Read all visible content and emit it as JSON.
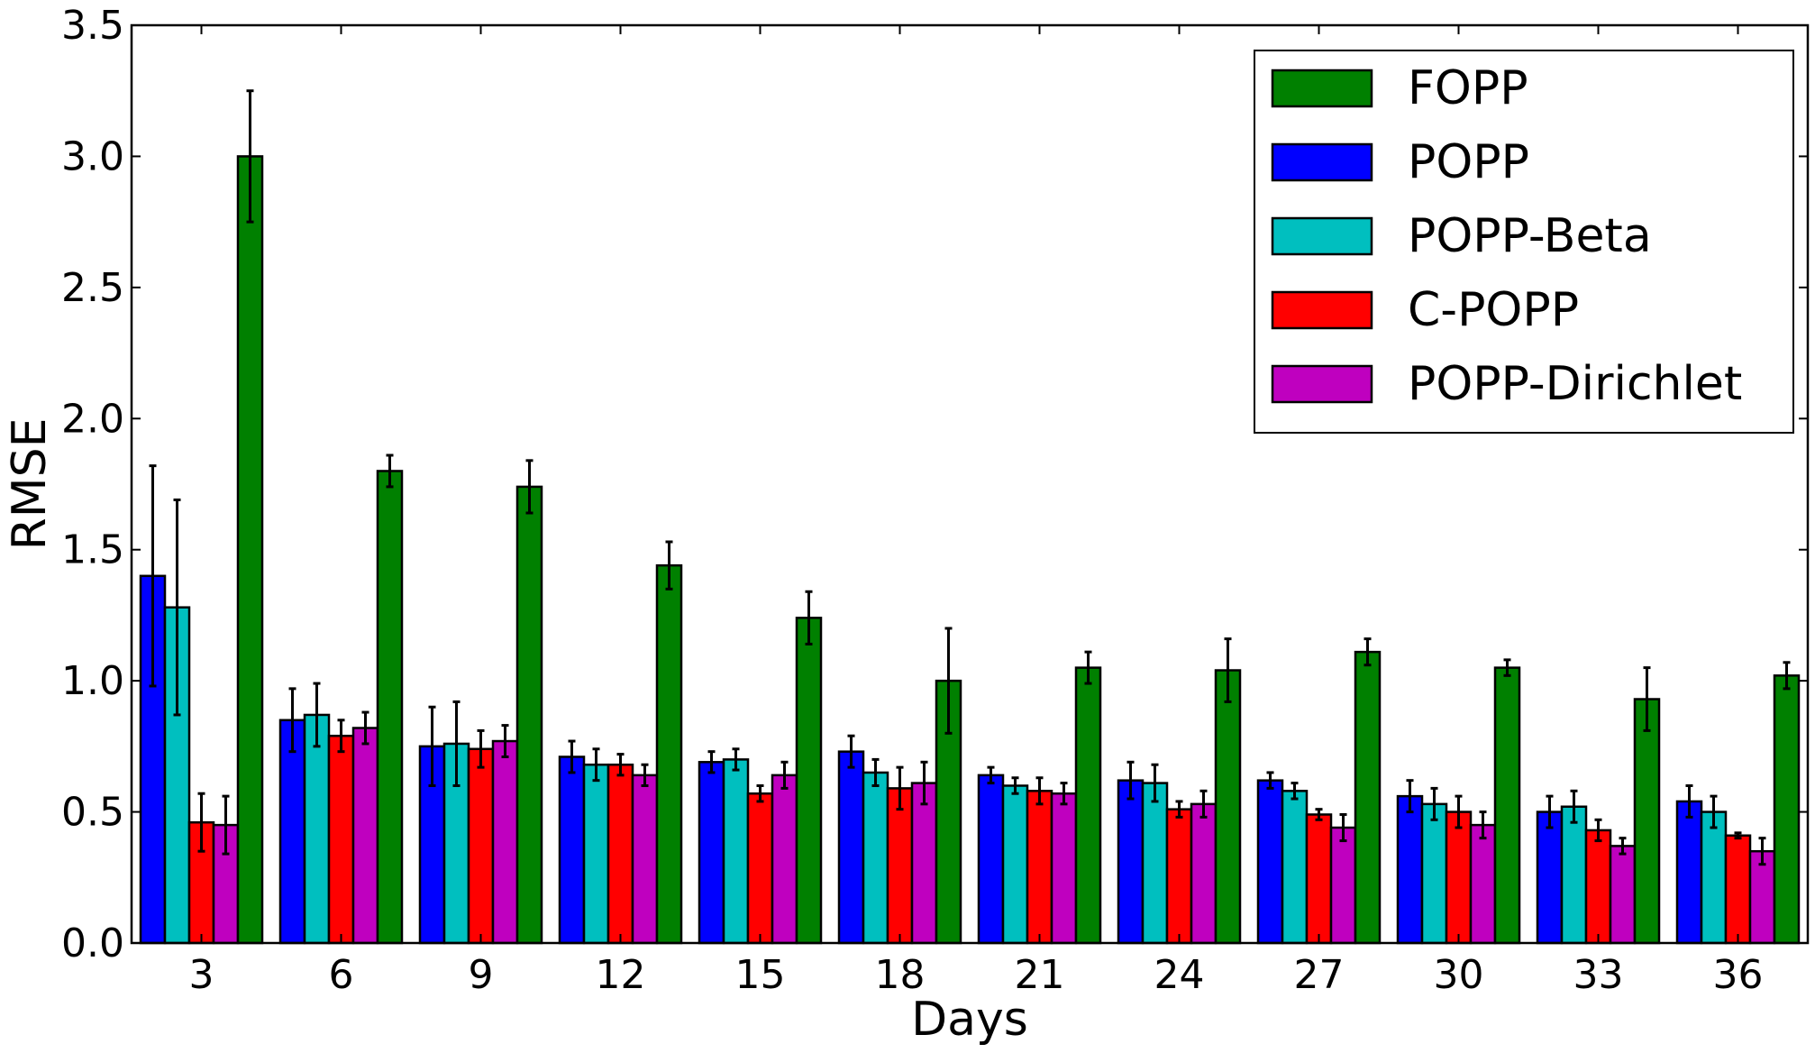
{
  "chart_data": {
    "type": "bar",
    "xlabel": "Days",
    "ylabel": "RMSE",
    "ylim": [
      0,
      3.5
    ],
    "yticks": [
      "0.0",
      "0.5",
      "1.0",
      "1.5",
      "2.0",
      "2.5",
      "3.0",
      "3.5"
    ],
    "categories": [
      "3",
      "6",
      "9",
      "12",
      "15",
      "18",
      "21",
      "24",
      "27",
      "30",
      "33",
      "36"
    ],
    "grid": false,
    "legend_position": "top-right",
    "series": [
      {
        "name": "POPP",
        "color": "#0000ff",
        "values": [
          1.4,
          0.85,
          0.75,
          0.71,
          0.69,
          0.73,
          0.64,
          0.62,
          0.62,
          0.56,
          0.5,
          0.54
        ],
        "errors": [
          0.42,
          0.12,
          0.15,
          0.06,
          0.04,
          0.06,
          0.03,
          0.07,
          0.03,
          0.06,
          0.06,
          0.06
        ]
      },
      {
        "name": "POPP-Beta",
        "color": "#00bfbf",
        "values": [
          1.28,
          0.87,
          0.76,
          0.68,
          0.7,
          0.65,
          0.6,
          0.61,
          0.58,
          0.53,
          0.52,
          0.5
        ],
        "errors": [
          0.41,
          0.12,
          0.16,
          0.06,
          0.04,
          0.05,
          0.03,
          0.07,
          0.03,
          0.06,
          0.06,
          0.06
        ]
      },
      {
        "name": "C-POPP",
        "color": "#ff0000",
        "values": [
          0.46,
          0.79,
          0.74,
          0.68,
          0.57,
          0.59,
          0.58,
          0.51,
          0.49,
          0.5,
          0.43,
          0.41
        ],
        "errors": [
          0.11,
          0.06,
          0.07,
          0.04,
          0.03,
          0.08,
          0.05,
          0.03,
          0.02,
          0.06,
          0.04,
          0.01
        ]
      },
      {
        "name": "POPP-Dirichlet",
        "color": "#bf00bf",
        "values": [
          0.45,
          0.82,
          0.77,
          0.64,
          0.64,
          0.61,
          0.57,
          0.53,
          0.44,
          0.45,
          0.37,
          0.35
        ],
        "errors": [
          0.11,
          0.06,
          0.06,
          0.04,
          0.05,
          0.08,
          0.04,
          0.05,
          0.05,
          0.05,
          0.03,
          0.05
        ]
      },
      {
        "name": "FOPP",
        "color": "#008000",
        "values": [
          3.0,
          1.8,
          1.74,
          1.44,
          1.24,
          1.0,
          1.05,
          1.04,
          1.11,
          1.05,
          0.93,
          1.02
        ],
        "errors": [
          0.25,
          0.06,
          0.1,
          0.09,
          0.1,
          0.2,
          0.06,
          0.12,
          0.05,
          0.03,
          0.12,
          0.05
        ]
      }
    ],
    "legend_order": [
      "FOPP",
      "POPP",
      "POPP-Beta",
      "C-POPP",
      "POPP-Dirichlet"
    ]
  }
}
